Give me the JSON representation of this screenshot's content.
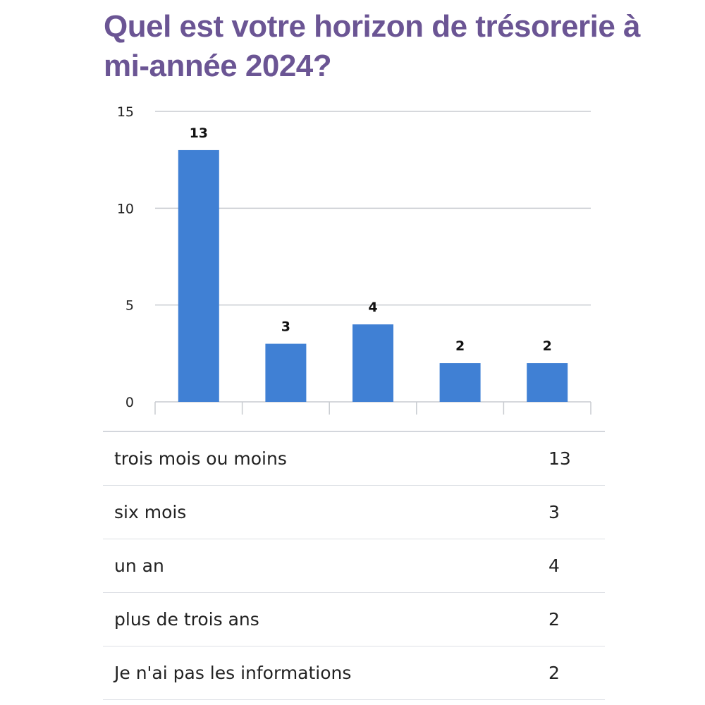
{
  "chart_data": {
    "type": "bar",
    "title": "Quel est votre horizon de trésorerie à mi-année 2024?",
    "categories": [
      "trois mois ou moins",
      "six mois",
      "un an",
      "plus de trois ans",
      "Je n'ai pas les informations"
    ],
    "values": [
      13,
      3,
      4,
      2,
      2
    ],
    "ylim": [
      0,
      15
    ],
    "yticks": [
      0,
      5,
      10,
      15
    ],
    "xlabel": "",
    "ylabel": "",
    "grid": true,
    "bar_color": "#4080d4"
  }
}
